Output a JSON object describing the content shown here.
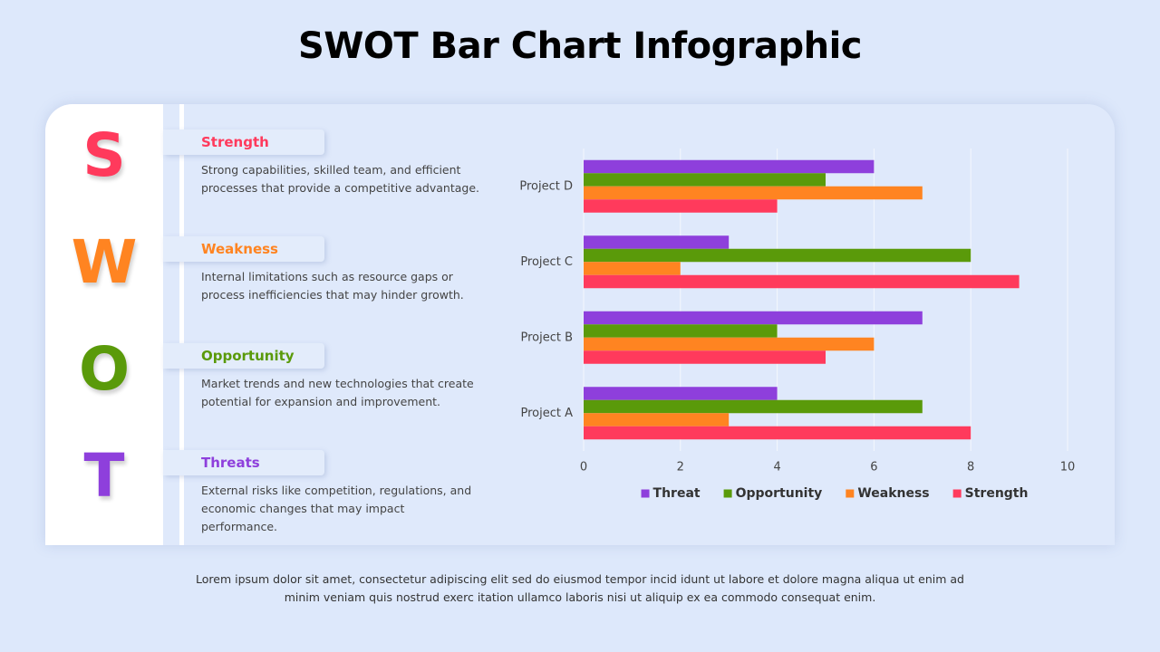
{
  "title": "SWOT Bar Chart Infographic",
  "swot": [
    {
      "letter": "S",
      "heading": "Strength",
      "color": "#ff3a5c",
      "text": "Strong capabilities, skilled team, and efficient processes that provide a competitive advantage."
    },
    {
      "letter": "W",
      "heading": "Weakness",
      "color": "#ff8421",
      "text": "Internal limitations such as resource gaps or process inefficiencies that may hinder growth."
    },
    {
      "letter": "O",
      "heading": "Opportunity",
      "color": "#5a9a0a",
      "text": "Market trends and new technologies that create potential for expansion and improvement."
    },
    {
      "letter": "T",
      "heading": "Threats",
      "color": "#8e3fdc",
      "text": "External risks like competition, regulations, and economic changes that may impact performance."
    }
  ],
  "footer": "Lorem ipsum dolor sit amet, consectetur adipiscing elit sed do eiusmod tempor incid idunt ut labore et dolore magna aliqua ut enim ad minim veniam quis nostrud exerc itation ullamco laboris nisi ut aliquip ex ea commodo consequat enim.",
  "chart_data": {
    "type": "bar",
    "orientation": "horizontal",
    "categories": [
      "Project A",
      "Project B",
      "Project C",
      "Project D"
    ],
    "series": [
      {
        "name": "Threat",
        "color": "#8e3fdc",
        "values": [
          4,
          7,
          3,
          6
        ]
      },
      {
        "name": "Opportunity",
        "color": "#5a9a0a",
        "values": [
          7,
          4,
          8,
          5
        ]
      },
      {
        "name": "Weakness",
        "color": "#ff8421",
        "values": [
          3,
          6,
          2,
          7
        ]
      },
      {
        "name": "Strength",
        "color": "#ff3a5c",
        "values": [
          8,
          5,
          9,
          4
        ]
      }
    ],
    "xlim": [
      0,
      10
    ],
    "xticks": [
      0,
      2,
      4,
      6,
      8,
      10
    ],
    "grid": true,
    "legend": "bottom"
  }
}
